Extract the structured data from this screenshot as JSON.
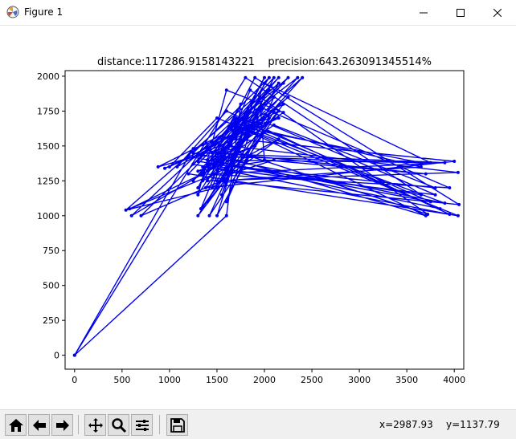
{
  "window": {
    "title": "Figure 1"
  },
  "plot": {
    "title": "distance:117286.9158143221    precision:643.263091345514%",
    "line_color": "#0000ee",
    "x_ticks": [
      "0",
      "500",
      "1000",
      "1500",
      "2000",
      "2500",
      "3000",
      "3500",
      "4000"
    ],
    "y_ticks": [
      "0",
      "250",
      "500",
      "750",
      "1000",
      "1250",
      "1500",
      "1750",
      "2000"
    ]
  },
  "toolbar": {
    "icons": [
      "home-icon",
      "back-arrow-icon",
      "forward-arrow-icon",
      "pan-icon",
      "zoom-icon",
      "configure-subplots-icon",
      "save-icon"
    ],
    "x_readout": "x=2987.93",
    "y_readout": "y=1137.79"
  },
  "chart_data": {
    "type": "line",
    "x_range": [
      -100,
      4100
    ],
    "y_range": [
      -100,
      2040
    ],
    "points": [
      [
        0,
        0
      ],
      [
        1800,
        1990
      ],
      [
        3650,
        1150
      ],
      [
        1300,
        1390
      ],
      [
        2100,
        1990
      ],
      [
        1600,
        1300
      ],
      [
        1900,
        1850
      ],
      [
        540,
        1040
      ],
      [
        1500,
        1200
      ],
      [
        2150,
        1950
      ],
      [
        1350,
        1450
      ],
      [
        3900,
        1380
      ],
      [
        1450,
        1300
      ],
      [
        2350,
        1990
      ],
      [
        1250,
        1420
      ],
      [
        3750,
        1100
      ],
      [
        1700,
        1700
      ],
      [
        600,
        1000
      ],
      [
        1550,
        1380
      ],
      [
        2000,
        1990
      ],
      [
        1400,
        1250
      ],
      [
        4040,
        1310
      ],
      [
        1650,
        1500
      ],
      [
        880,
        1350
      ],
      [
        2200,
        1800
      ],
      [
        1300,
        1000
      ],
      [
        1850,
        1600
      ],
      [
        3700,
        1000
      ],
      [
        1450,
        1450
      ],
      [
        2050,
        1900
      ],
      [
        1200,
        1300
      ],
      [
        4040,
        1000
      ],
      [
        1500,
        1700
      ],
      [
        1000,
        1350
      ],
      [
        2150,
        1750
      ],
      [
        1420,
        1000
      ],
      [
        1950,
        1780
      ],
      [
        3950,
        1200
      ],
      [
        1330,
        1300
      ],
      [
        2250,
        1990
      ],
      [
        1600,
        1600
      ],
      [
        700,
        1000
      ],
      [
        1550,
        1250
      ],
      [
        3650,
        1350
      ],
      [
        1750,
        1650
      ],
      [
        1250,
        1250
      ],
      [
        2100,
        1850
      ],
      [
        1600,
        1100
      ],
      [
        1900,
        1700
      ],
      [
        3800,
        1150
      ],
      [
        1350,
        1350
      ],
      [
        2400,
        1990
      ],
      [
        1480,
        1300
      ],
      [
        580,
        1050
      ],
      [
        1650,
        1400
      ],
      [
        2000,
        1800
      ],
      [
        1380,
        1200
      ],
      [
        4000,
        1390
      ],
      [
        1700,
        1550
      ],
      [
        950,
        1340
      ],
      [
        2050,
        1700
      ],
      [
        1330,
        1050
      ],
      [
        1850,
        1900
      ],
      [
        3720,
        1010
      ],
      [
        1520,
        1500
      ],
      [
        2150,
        1990
      ],
      [
        1250,
        1370
      ],
      [
        3950,
        1010
      ],
      [
        1600,
        1750
      ],
      [
        1080,
        1350
      ],
      [
        2100,
        1750
      ],
      [
        1500,
        1000
      ],
      [
        1800,
        1650
      ],
      [
        3850,
        1050
      ],
      [
        1400,
        1400
      ],
      [
        2200,
        1950
      ],
      [
        1650,
        1550
      ],
      [
        1300,
        1200
      ],
      [
        1900,
        1990
      ],
      [
        4050,
        1080
      ],
      [
        1500,
        1250
      ],
      [
        1950,
        1750
      ],
      [
        1400,
        1100
      ],
      [
        2000,
        1600
      ],
      [
        3650,
        1380
      ],
      [
        1300,
        1430
      ],
      [
        2150,
        1700
      ],
      [
        1250,
        1480
      ],
      [
        0,
        0
      ],
      [
        1600,
        1000
      ],
      [
        1750,
        1800
      ],
      [
        1350,
        1300
      ],
      [
        2100,
        1650
      ],
      [
        3800,
        1200
      ],
      [
        1450,
        1370
      ],
      [
        2200,
        1740
      ],
      [
        1600,
        1900
      ],
      [
        1300,
        1150
      ],
      [
        1950,
        1850
      ],
      [
        2000,
        1400
      ],
      [
        3700,
        1300
      ],
      [
        1550,
        1450
      ],
      [
        2250,
        1850
      ],
      [
        1400,
        1320
      ],
      [
        2050,
        1990
      ],
      [
        1250,
        1450
      ],
      [
        3900,
        1090
      ],
      [
        1700,
        1650
      ],
      [
        1450,
        1200
      ],
      [
        2150,
        1550
      ],
      [
        1350,
        1250
      ],
      [
        1850,
        1750
      ],
      [
        1550,
        1150
      ],
      [
        2000,
        1950
      ],
      [
        3750,
        1380
      ],
      [
        1500,
        1400
      ],
      [
        1900,
        1500
      ],
      [
        1300,
        1320
      ],
      [
        2100,
        1400
      ],
      [
        1650,
        1300
      ]
    ]
  }
}
